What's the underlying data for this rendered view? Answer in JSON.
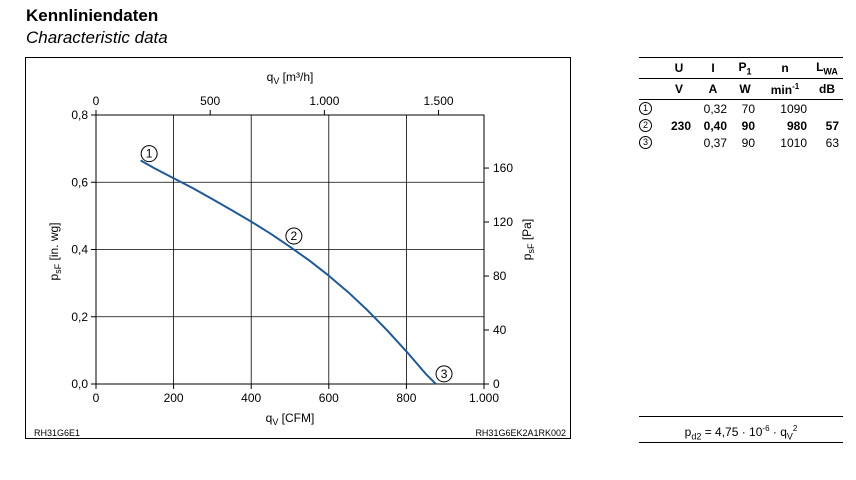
{
  "header": {
    "title": "Kennliniendaten",
    "subtitle": "Characteristic data"
  },
  "chart_data": {
    "type": "line",
    "codes": {
      "left": "RH31G6E1",
      "right": "RH31G6EK2A1RK002"
    },
    "axes": {
      "x_bottom": {
        "label_main": "q",
        "label_sub": "V",
        "label_unit": " [CFM]",
        "min": 0,
        "max": 1000,
        "ticks": [
          0,
          200,
          400,
          600,
          800,
          1000
        ],
        "tick_labels": [
          "0",
          "200",
          "400",
          "600",
          "800",
          "1.000"
        ]
      },
      "x_top": {
        "label_main": "q",
        "label_sub": "V",
        "label_unit": " [m³/h]",
        "min": 0,
        "max": 1699,
        "ticks": [
          0,
          500,
          1000,
          1500
        ],
        "tick_labels": [
          "0",
          "500",
          "1.000",
          "1.500"
        ]
      },
      "y_left": {
        "label_main": "p",
        "label_sub": "sF",
        "label_unit": " [in. wg]",
        "min": 0,
        "max": 0.8,
        "ticks": [
          0,
          0.2,
          0.4,
          0.6,
          0.8
        ],
        "tick_labels": [
          "0,0",
          "0,2",
          "0,4",
          "0,6",
          "0,8"
        ]
      },
      "y_right": {
        "label_main": "p",
        "label_sub": "sF",
        "label_unit": " [Pa]",
        "min": 0,
        "max": 199.3,
        "ticks": [
          0,
          40,
          80,
          120,
          160
        ],
        "tick_labels": [
          "0",
          "40",
          "80",
          "120",
          "160"
        ]
      }
    },
    "grid": true,
    "series": [
      {
        "color": "#1f5a96",
        "x": [
          115,
          150,
          200,
          250,
          300,
          350,
          400,
          450,
          500,
          550,
          600,
          650,
          700,
          750,
          800,
          850,
          876
        ],
        "y": [
          0.665,
          0.642,
          0.612,
          0.582,
          0.55,
          0.517,
          0.483,
          0.447,
          0.408,
          0.367,
          0.322,
          0.273,
          0.219,
          0.16,
          0.097,
          0.03,
          0.0
        ]
      }
    ],
    "markers": [
      {
        "label": "1",
        "x": 137,
        "y": 0.685
      },
      {
        "label": "2",
        "x": 510,
        "y": 0.44
      },
      {
        "label": "3",
        "x": 897,
        "y": 0.03
      }
    ]
  },
  "table": {
    "header1": [
      "U",
      "I",
      "P",
      "n",
      "L"
    ],
    "header1_subs": [
      "",
      "",
      "1",
      "",
      "WA"
    ],
    "header2": [
      "V",
      "A",
      "W",
      "min",
      "dB"
    ],
    "min_sup": "-1",
    "rows": [
      {
        "marker": "1",
        "U": "",
        "I": "0,32",
        "P": "70",
        "n": "1090",
        "L": ""
      },
      {
        "marker": "2",
        "U": "230",
        "I": "0,40",
        "P": "90",
        "n": "980",
        "L": "57"
      },
      {
        "marker": "3",
        "U": "",
        "I": "0,37",
        "P": "90",
        "n": "1010",
        "L": "63"
      }
    ]
  },
  "formula": {
    "p": "p",
    "p_sub": "d2",
    "eq": " = 4,75 · 10",
    "exp": "-6",
    "dot": " · q",
    "q_sub": "V",
    "q_sup": "2"
  }
}
